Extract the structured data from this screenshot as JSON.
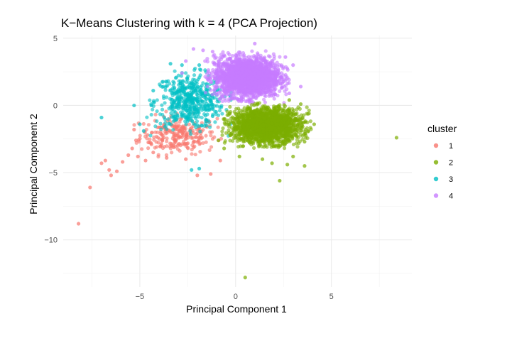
{
  "chart_data": {
    "type": "scatter",
    "title": "K−Means Clustering with k = 4 (PCA Projection)",
    "xlabel": "Principal Component 1",
    "ylabel": "Principal Component 2",
    "xlim": [
      -9.0,
      9.2
    ],
    "ylim": [
      -13.5,
      5.2
    ],
    "x_ticks": [
      -5,
      0,
      5
    ],
    "x_tick_labels": [
      "−5",
      "0",
      "5"
    ],
    "y_ticks": [
      -10,
      -5,
      0,
      5
    ],
    "y_tick_labels": [
      "−10",
      "−5",
      "0",
      "5"
    ],
    "grid": true,
    "legend": {
      "title": "cluster",
      "position": "right"
    },
    "series": [
      {
        "name": "1",
        "color": "#F8766D",
        "center": [
          -3.0,
          -2.2
        ],
        "spread": [
          1.0,
          0.7
        ],
        "count": 260,
        "points": [
          [
            -8.2,
            -8.8
          ],
          [
            -7.6,
            -6.1
          ],
          [
            -6.5,
            -5.2
          ],
          [
            -6.6,
            -4.8
          ],
          [
            -6.2,
            -4.9
          ],
          [
            -6.8,
            -4.1
          ],
          [
            -7.0,
            -4.3
          ],
          [
            -5.9,
            -4.2
          ],
          [
            -5.6,
            -3.7
          ],
          [
            -5.1,
            -3.8
          ],
          [
            -5.4,
            -3.2
          ],
          [
            -4.7,
            -4.1
          ],
          [
            -4.3,
            -3.5
          ],
          [
            -5.2,
            -2.6
          ],
          [
            -4.6,
            -2.2
          ],
          [
            -5.3,
            -1.8
          ],
          [
            -2.0,
            -5.2
          ],
          [
            -1.3,
            -5.1
          ],
          [
            -0.8,
            -4.1
          ],
          [
            -3.6,
            -3.9
          ],
          [
            -2.6,
            -4.0
          ]
        ]
      },
      {
        "name": "2",
        "color": "#7CAE00",
        "center": [
          1.6,
          -1.5
        ],
        "spread": [
          0.9,
          0.65
        ],
        "count": 1900,
        "points": [
          [
            8.4,
            -2.4
          ],
          [
            0.5,
            -12.8
          ],
          [
            2.3,
            -5.6
          ],
          [
            3.0,
            -3.8
          ],
          [
            3.6,
            -2.7
          ],
          [
            4.1,
            -1.4
          ],
          [
            3.8,
            -1.9
          ],
          [
            1.9,
            -4.3
          ],
          [
            2.7,
            -4.4
          ],
          [
            1.4,
            -4.0
          ],
          [
            0.2,
            -3.8
          ],
          [
            -0.6,
            -3.2
          ],
          [
            -0.9,
            -2.6
          ],
          [
            3.6,
            -4.5
          ],
          [
            3.4,
            0.1
          ],
          [
            2.8,
            0.4
          ]
        ]
      },
      {
        "name": "3",
        "color": "#00BFC4",
        "center": [
          -2.4,
          0.3
        ],
        "spread": [
          0.9,
          1.0
        ],
        "count": 520,
        "points": [
          [
            -5.3,
            0.0
          ],
          [
            -4.4,
            0.0
          ],
          [
            -7.0,
            -0.9
          ],
          [
            -2.3,
            -4.8
          ],
          [
            -1.9,
            -4.7
          ],
          [
            -1.9,
            3.0
          ],
          [
            -2.8,
            3.0
          ],
          [
            -3.4,
            3.1
          ],
          [
            -4.3,
            1.1
          ],
          [
            -5.0,
            -1.4
          ],
          [
            -4.8,
            -1.9
          ],
          [
            -1.0,
            1.7
          ],
          [
            -1.2,
            -0.8
          ]
        ]
      },
      {
        "name": "4",
        "color": "#C77CFF",
        "center": [
          0.6,
          2.1
        ],
        "spread": [
          0.85,
          0.75
        ],
        "count": 2000,
        "points": [
          [
            -1.7,
            4.1
          ],
          [
            -2.2,
            4.2
          ],
          [
            1.0,
            4.6
          ],
          [
            2.6,
            3.6
          ],
          [
            3.0,
            3.0
          ],
          [
            3.4,
            1.4
          ],
          [
            2.8,
            0.9
          ],
          [
            -2.6,
            3.3
          ],
          [
            -2.8,
            2.4
          ],
          [
            -1.2,
            4.0
          ],
          [
            -0.9,
            3.3
          ]
        ]
      }
    ]
  }
}
